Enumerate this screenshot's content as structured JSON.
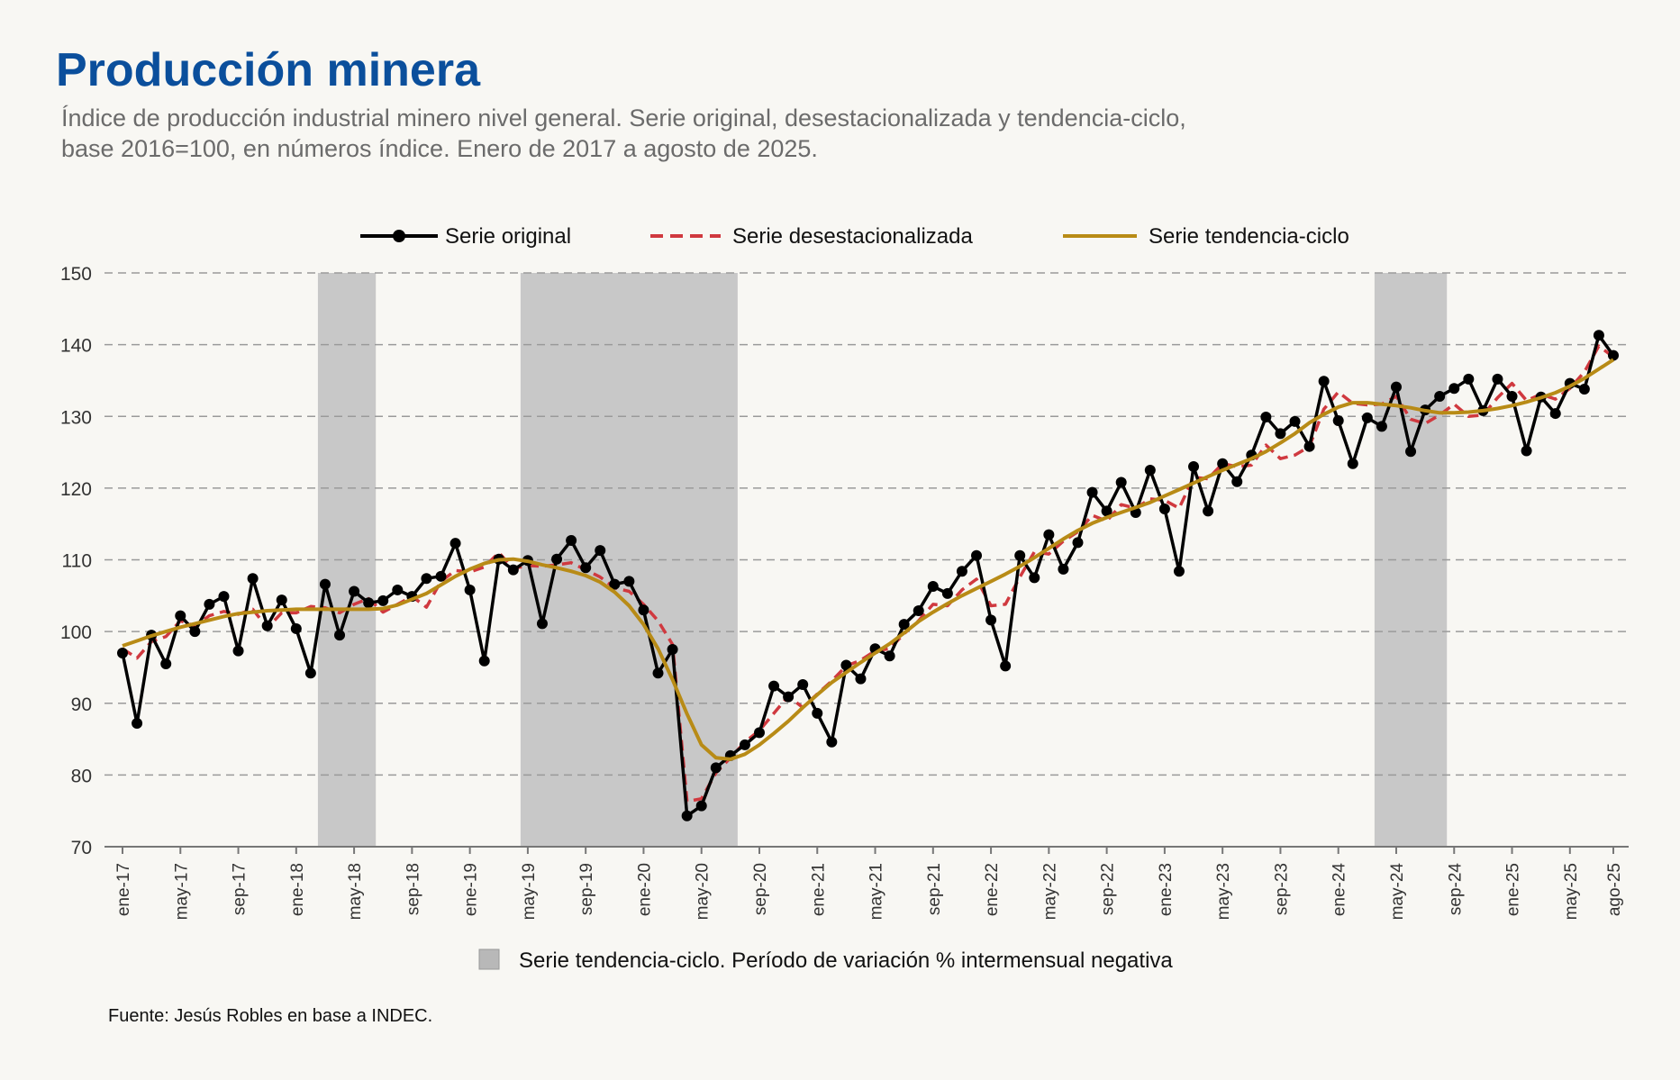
{
  "title": "Producción minera",
  "subtitle_line1": "Índice de producción industrial minero nivel general. Serie original, desestacionalizada y tendencia-ciclo,",
  "subtitle_line2": "base 2016=100, en números índice. Enero de 2017 a agosto de 2025.",
  "source": "Fuente: Jesús Robles en base a INDEC.",
  "colors": {
    "original": "#000000",
    "desestacionalizada": "#d0393f",
    "tendencia": "#b88b16",
    "shade": "#c8c8c8",
    "grid": "#9a9a9a"
  },
  "chart_data": {
    "type": "line",
    "ylim": [
      70,
      150
    ],
    "yticks": [
      70,
      80,
      90,
      100,
      110,
      120,
      130,
      140,
      150
    ],
    "xlabel": "",
    "ylabel": "",
    "grid": "horizontal dashed",
    "legend": "top-center",
    "months_total": 104,
    "x_tick_labels": [
      {
        "i": 0,
        "label": "ene-17"
      },
      {
        "i": 4,
        "label": "may-17"
      },
      {
        "i": 8,
        "label": "sep-17"
      },
      {
        "i": 12,
        "label": "ene-18"
      },
      {
        "i": 16,
        "label": "may-18"
      },
      {
        "i": 20,
        "label": "sep-18"
      },
      {
        "i": 24,
        "label": "ene-19"
      },
      {
        "i": 28,
        "label": "may-19"
      },
      {
        "i": 32,
        "label": "sep-19"
      },
      {
        "i": 36,
        "label": "ene-20"
      },
      {
        "i": 40,
        "label": "may-20"
      },
      {
        "i": 44,
        "label": "sep-20"
      },
      {
        "i": 48,
        "label": "ene-21"
      },
      {
        "i": 52,
        "label": "may-21"
      },
      {
        "i": 56,
        "label": "sep-21"
      },
      {
        "i": 60,
        "label": "ene-22"
      },
      {
        "i": 64,
        "label": "may-22"
      },
      {
        "i": 68,
        "label": "sep-22"
      },
      {
        "i": 72,
        "label": "ene-23"
      },
      {
        "i": 76,
        "label": "may-23"
      },
      {
        "i": 80,
        "label": "sep-23"
      },
      {
        "i": 84,
        "label": "ene-24"
      },
      {
        "i": 88,
        "label": "may-24"
      },
      {
        "i": 92,
        "label": "sep-24"
      },
      {
        "i": 96,
        "label": "ene-25"
      },
      {
        "i": 100,
        "label": "may-25"
      },
      {
        "i": 103,
        "label": "ago-25"
      }
    ],
    "shaded_periods": [
      {
        "start": "abr-18",
        "end": "jul-18",
        "start_i": 14,
        "end_i": 18
      },
      {
        "start": "feb-19",
        "end": "ago-20",
        "start_i": 28,
        "end_i": 43
      },
      {
        "start": "abr-24",
        "end": "ago-24",
        "start_i": 87,
        "end_i": 92
      }
    ],
    "series": [
      {
        "name": "Serie original",
        "values": [
          97.0,
          87.2,
          99.5,
          95.5,
          102.2,
          100.0,
          103.8,
          104.9,
          97.3,
          107.4,
          100.8,
          104.4,
          100.4,
          94.2,
          106.6,
          99.5,
          105.6,
          104.0,
          104.3,
          105.8,
          104.9,
          107.4,
          107.7,
          112.3,
          105.8,
          95.9,
          110.1,
          108.6,
          109.9,
          101.1,
          110.1,
          112.7,
          108.9,
          111.3,
          106.6,
          107.0,
          103.0,
          94.2,
          97.5,
          74.3,
          75.7,
          81.0,
          82.7,
          84.2,
          85.9,
          92.4,
          90.9,
          92.6,
          88.6,
          84.6,
          95.3,
          93.4,
          97.6,
          96.6,
          101.0,
          102.9,
          106.3,
          105.3,
          108.4,
          110.6,
          101.6,
          95.2,
          110.6,
          107.5,
          113.5,
          108.7,
          112.4,
          119.4,
          116.8,
          120.8,
          116.6,
          122.5,
          117.1,
          108.4,
          123.0,
          116.8,
          123.4,
          120.9,
          124.6,
          129.9,
          127.6,
          129.3,
          125.8,
          134.9,
          129.4,
          123.4,
          129.8,
          128.6,
          134.1,
          125.1,
          130.9,
          132.8,
          133.9,
          135.2,
          130.8,
          135.2,
          132.8,
          125.2,
          132.7,
          130.4,
          134.6,
          133.8,
          141.3,
          138.5
        ]
      },
      {
        "name": "Serie desestacionalizada",
        "values": [
          97.6,
          96.3,
          98.6,
          99.3,
          101.5,
          100.8,
          102.2,
          102.8,
          102.4,
          103.1,
          100.5,
          102.6,
          102.6,
          103.5,
          103.3,
          102.6,
          103.8,
          104.6,
          102.7,
          103.8,
          104.9,
          103.4,
          107.0,
          108.5,
          108.3,
          109.0,
          111.0,
          108.8,
          109.2,
          109.1,
          109.3,
          109.6,
          108.6,
          107.6,
          106.1,
          105.6,
          103.8,
          101.5,
          98.2,
          76.3,
          76.7,
          80.3,
          82.4,
          84.6,
          86.2,
          88.6,
          91.0,
          89.4,
          91.3,
          93.1,
          95.2,
          96.0,
          97.3,
          97.6,
          99.7,
          101.5,
          103.8,
          103.6,
          105.8,
          107.3,
          103.6,
          103.8,
          107.6,
          111.1,
          110.8,
          112.6,
          113.9,
          116.2,
          115.4,
          117.7,
          117.2,
          118.5,
          118.3,
          117.2,
          121.5,
          121.3,
          123.4,
          123.0,
          123.2,
          126.0,
          124.1,
          124.6,
          125.8,
          131.0,
          133.4,
          131.8,
          131.6,
          131.7,
          132.8,
          129.6,
          129.0,
          130.2,
          131.7,
          130.0,
          130.2,
          132.6,
          134.6,
          132.2,
          133.1,
          132.4,
          133.9,
          136.2,
          139.8,
          138.3
        ]
      },
      {
        "name": "Serie tendencia-ciclo",
        "values": [
          98.0,
          98.7,
          99.4,
          100.0,
          100.6,
          101.1,
          101.6,
          102.1,
          102.5,
          102.7,
          102.9,
          103.0,
          103.1,
          103.1,
          103.1,
          103.1,
          103.1,
          103.1,
          103.2,
          103.7,
          104.5,
          105.3,
          106.5,
          107.7,
          108.7,
          109.5,
          110.0,
          110.1,
          109.8,
          109.3,
          108.9,
          108.4,
          107.8,
          106.9,
          105.5,
          103.6,
          101.0,
          97.6,
          93.3,
          88.5,
          84.2,
          82.4,
          82.2,
          82.9,
          84.2,
          85.8,
          87.5,
          89.4,
          91.2,
          92.9,
          94.3,
          95.7,
          97.0,
          98.3,
          99.8,
          101.4,
          102.7,
          103.9,
          105.0,
          106.0,
          107.0,
          108.0,
          109.1,
          110.3,
          111.6,
          112.9,
          114.1,
          115.1,
          115.9,
          116.6,
          117.3,
          118.0,
          118.9,
          119.8,
          120.7,
          121.6,
          122.5,
          123.3,
          124.1,
          125.1,
          126.3,
          127.6,
          129.1,
          130.3,
          131.3,
          131.9,
          131.9,
          131.7,
          131.5,
          131.2,
          130.8,
          130.5,
          130.5,
          130.6,
          130.8,
          131.1,
          131.5,
          132.0,
          132.6,
          133.3,
          134.2,
          135.3,
          136.6,
          137.9
        ]
      }
    ],
    "shade_legend": "Serie tendencia-ciclo. Período de variación % intermensual negativa"
  }
}
